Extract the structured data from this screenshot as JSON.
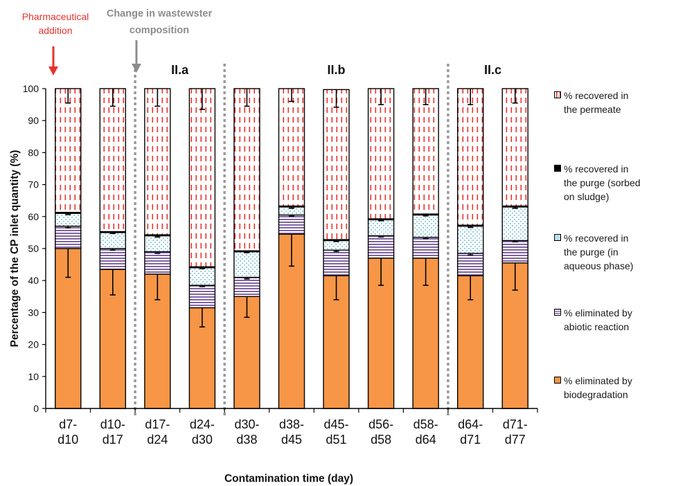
{
  "chart_data": {
    "type": "bar",
    "stacked": true,
    "categories": [
      "d7-d10",
      "d10-d17",
      "d17-d24",
      "d24-d30",
      "d30-d38",
      "d38-d45",
      "d45-d51",
      "d56-d58",
      "d58-d64",
      "d64-d71",
      "d71-d77"
    ],
    "category_lines": [
      [
        "d7-",
        "d10"
      ],
      [
        "d10-",
        "d17"
      ],
      [
        "d17-",
        "d24"
      ],
      [
        "d24-",
        "d30"
      ],
      [
        "d30-",
        "d38"
      ],
      [
        "d38-",
        "d45"
      ],
      [
        "d45-",
        "d51"
      ],
      [
        "d56-",
        "d58"
      ],
      [
        "d58-",
        "d64"
      ],
      [
        "d64-",
        "d71"
      ],
      [
        "d71-",
        "d77"
      ]
    ],
    "series": [
      {
        "name": "% eliminated by biodegradation",
        "values": [
          50,
          43.5,
          42,
          31.5,
          35,
          54.5,
          41.5,
          47,
          47,
          41.5,
          45.5
        ],
        "error": [
          9,
          8,
          8,
          6,
          6.5,
          10,
          7.5,
          8.5,
          8.5,
          7.5,
          8.5
        ],
        "color": "#f79646",
        "pattern": "solid"
      },
      {
        "name": "% eliminated by abiotic reaction",
        "values": [
          7,
          6.5,
          7,
          7,
          6,
          6,
          8,
          7,
          6.5,
          7,
          7
        ],
        "error": [
          0.5,
          0.5,
          0.5,
          0.4,
          0.5,
          0.4,
          0.4,
          0.4,
          0.4,
          0.5,
          0.4
        ],
        "color": "#8064a2",
        "pattern": "horizontal-stripes"
      },
      {
        "name": "% recovered in the purge (in aqueous phase)",
        "values": [
          4,
          5,
          5,
          5.5,
          8,
          2.5,
          3,
          5,
          7,
          8.5,
          10.5
        ],
        "error": [
          0.4,
          0.3,
          0.4,
          0.3,
          0.3,
          0.4,
          0.3,
          0.3,
          0.3,
          0.4,
          0.4
        ],
        "color": "#4bacc6",
        "pattern": "dots"
      },
      {
        "name": "% recovered in the purge (sorbed on sludge)",
        "values": [
          0.3,
          0.3,
          0.3,
          0.3,
          0.3,
          0.3,
          0.3,
          0.3,
          0.3,
          0.3,
          0.3
        ],
        "color": "#000000",
        "pattern": "solid"
      },
      {
        "name": "% recovered in the permeate",
        "values": [
          38.7,
          44.7,
          45.7,
          55.7,
          50.7,
          36.7,
          46.9,
          40.7,
          39.2,
          42.7,
          36.7
        ],
        "error": [
          4.5,
          5.5,
          5.5,
          6.5,
          5.5,
          4,
          5.5,
          5,
          5,
          5,
          4.5
        ],
        "color": "#e8322b",
        "pattern": "vertical-dashes"
      }
    ],
    "ylim": [
      0,
      100
    ],
    "yticks": [
      0,
      10,
      20,
      30,
      40,
      50,
      60,
      70,
      80,
      90,
      100
    ],
    "ylabel": "Percentage of the CP inlet quantity (%)",
    "xlabel": "Contamination time (day)",
    "phases": [
      {
        "label": "II.a",
        "start": 2,
        "end": 3
      },
      {
        "label": "II.b",
        "start": 4,
        "end": 8
      },
      {
        "label": "II.c",
        "start": 9,
        "end": 10
      }
    ],
    "phase_dividers_after": [
      1,
      3,
      8
    ],
    "legend": {
      "position": "right"
    },
    "grid": false
  },
  "annotations": {
    "pharma_line1": "Pharmaceutical",
    "pharma_line2": "addition",
    "pharma_color": "#e8322b",
    "change_line1": "Change in wastewster",
    "change_line2": "composition",
    "change_color": "#8c8c8c"
  },
  "legend_items": [
    {
      "line1": "% recovered in",
      "line2": "the permeate",
      "line3": "",
      "series_index": 4
    },
    {
      "line1": "% recovered in",
      "line2": "the purge (sorbed",
      "line3": "on sludge)",
      "series_index": 3
    },
    {
      "line1": "% recovered in",
      "line2": "the purge (in",
      "line3": "aqueous phase)",
      "series_index": 2
    },
    {
      "line1": "% eliminated by",
      "line2": "abiotic reaction",
      "line3": "",
      "series_index": 1
    },
    {
      "line1": "% eliminated by",
      "line2": "biodegradation",
      "line3": "",
      "series_index": 0
    }
  ]
}
